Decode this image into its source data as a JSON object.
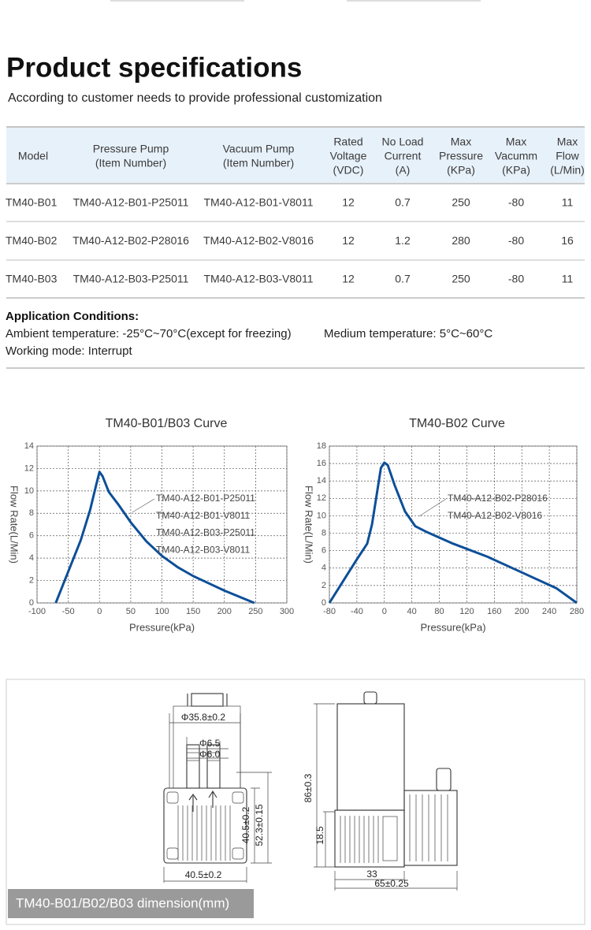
{
  "header": {
    "title": "Product specifications",
    "subtitle": "According to customer needs to provide professional customization"
  },
  "table": {
    "header": [
      [
        "Model"
      ],
      [
        "Pressure Pump",
        "(Item Number)"
      ],
      [
        "Vacuum Pump",
        "(Item Number)"
      ],
      [
        "Rated",
        "Voltage",
        "(VDC)"
      ],
      [
        "No Load",
        "Current",
        "(A)"
      ],
      [
        "Max",
        "Pressure",
        "(KPa)"
      ],
      [
        "Max",
        "Vacumm",
        "(KPa)"
      ],
      [
        "Max",
        "Flow",
        "(L/Min)"
      ]
    ],
    "rows": [
      [
        "TM40-B01",
        "TM40-A12-B01-P25011",
        "TM40-A12-B01-V8011",
        12,
        0.7,
        250,
        -80,
        11
      ],
      [
        "TM40-B02",
        "TM40-A12-B02-P28016",
        "TM40-A12-B02-V8016",
        12,
        1.2,
        280,
        -80,
        16
      ],
      [
        "TM40-B03",
        "TM40-A12-B03-P25011",
        "TM40-A12-B03-V8011",
        12,
        0.7,
        250,
        -80,
        11
      ]
    ]
  },
  "conditions": {
    "title": "Application Conditions:",
    "ambient": "Ambient temperature: -25°C~70°C(except for freezing)",
    "medium": "Medium temperature: 5°C~60°C",
    "mode": "Working mode: Interrupt"
  },
  "chart_data": [
    {
      "type": "line",
      "title": "TM40-B01/B03 Curve",
      "x_label": "Pressure(kPa)",
      "y_label": "Flow Rate(L/Min)",
      "x": [
        -70,
        -50,
        -30,
        -15,
        -5,
        0,
        5,
        15,
        30,
        50,
        75,
        100,
        125,
        150,
        200,
        248
      ],
      "series": [
        {
          "color": "#0d4f98",
          "values": [
            0,
            2.8,
            5.6,
            8.3,
            10.6,
            11.7,
            11.3,
            9.9,
            8.8,
            7.2,
            5.5,
            4.2,
            3.2,
            2.4,
            1.1,
            0
          ]
        }
      ],
      "xlim": [
        -100,
        300
      ],
      "ylim": [
        0,
        14
      ],
      "xticks": [
        -100,
        -50,
        0,
        50,
        100,
        150,
        200,
        250,
        300
      ],
      "yticks": [
        0,
        2,
        4,
        6,
        8,
        10,
        12,
        14
      ],
      "grid": true,
      "annotations": [
        "TM40-A12-B01-P25011",
        "TM40-A12-B01-V8011",
        "TM40-A12-B03-P25011",
        "TM40-A12-B03-V8011"
      ]
    },
    {
      "type": "line",
      "title": "TM40-B02 Curve",
      "x_label": "Pressure(kPa)",
      "y_label": "Flow Rate(L/Min)",
      "x": [
        -80,
        -60,
        -40,
        -25,
        -18,
        -10,
        -5,
        0,
        5,
        15,
        30,
        45,
        60,
        100,
        150,
        200,
        250,
        280
      ],
      "series": [
        {
          "color": "#0d4f98",
          "values": [
            0,
            2.5,
            5,
            6.8,
            9,
            13,
            15.5,
            16.1,
            15.8,
            13.5,
            10.5,
            8.8,
            8.2,
            6.8,
            5.3,
            3.5,
            1.7,
            0
          ]
        }
      ],
      "xlim": [
        -80,
        280
      ],
      "ylim": [
        0,
        18
      ],
      "xticks": [
        -80,
        -40,
        0,
        40,
        80,
        120,
        160,
        200,
        240,
        280
      ],
      "yticks": [
        0,
        2,
        4,
        6,
        8,
        10,
        12,
        14,
        16,
        18
      ],
      "grid": true,
      "annotations": [
        "TM40-A12-B02-P28016",
        "TM40-A12-B02-V8016"
      ]
    }
  ],
  "dimensions": {
    "caption": "TM40-B01/B02/B03 dimension(mm)",
    "labels": [
      "Φ35.8±0.2",
      "Φ6.5",
      "Φ6.0",
      "40.5±0.2",
      "52.3±0.15",
      "40.5±0.2",
      "86±0.3",
      "18.5",
      "33",
      "65±0.25"
    ]
  }
}
